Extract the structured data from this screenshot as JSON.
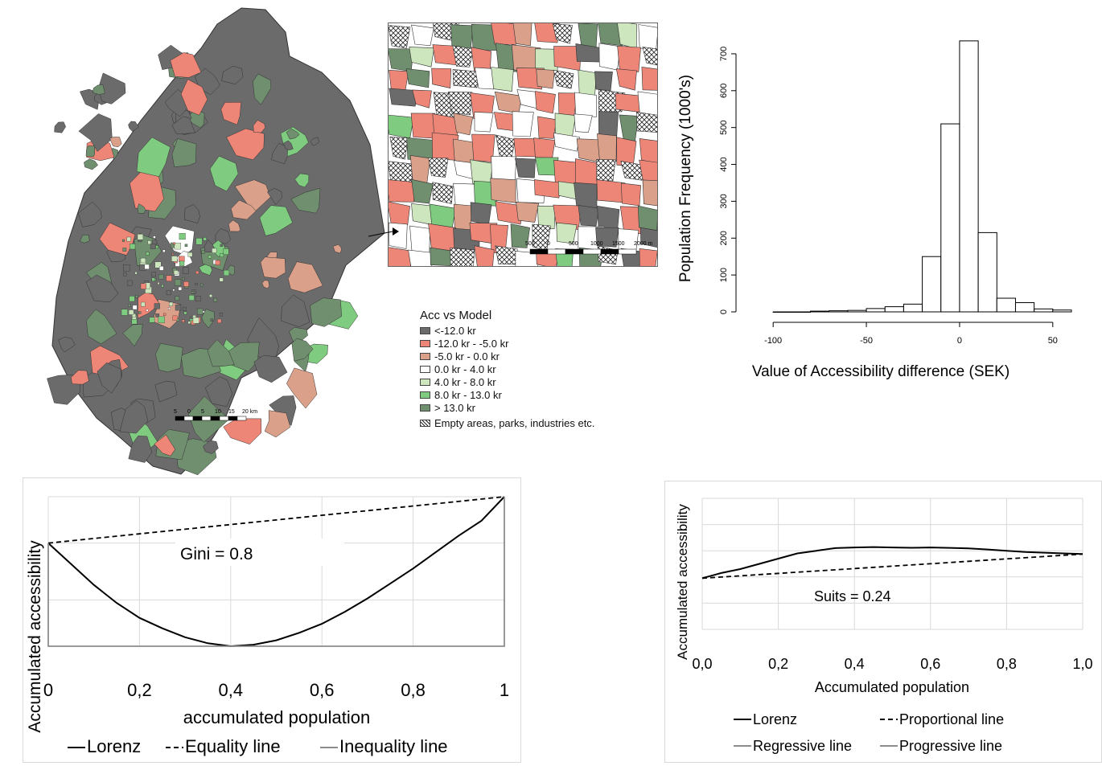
{
  "map": {
    "legend_title": "Acc vs Model",
    "legend": [
      {
        "label": "<-12.0 kr",
        "color": "#6b6b6b"
      },
      {
        "label": "-12.0 kr - -5.0 kr",
        "color": "#ee8677"
      },
      {
        "label": "-5.0 kr - 0.0 kr",
        "color": "#dba08a"
      },
      {
        "label": "0.0 kr - 4.0 kr",
        "color": "#ffffff"
      },
      {
        "label": "4.0 kr - 8.0 kr",
        "color": "#cde6bd"
      },
      {
        "label": "8.0 kr - 13.0 kr",
        "color": "#7fcc80"
      },
      {
        "label": "> 13.0 kr",
        "color": "#6f8f6e"
      }
    ],
    "empty_label": "Empty areas, parks, industries etc.",
    "scale_main": [
      "5",
      "0",
      "5",
      "10",
      "15",
      "20 km"
    ],
    "scale_inset": [
      "500",
      "0",
      "500",
      "1000",
      "1500",
      "2000 m"
    ]
  },
  "chart_data": [
    {
      "type": "bar",
      "title": "",
      "xlabel": "Value of Accessibility difference (SEK)",
      "ylabel": "Population Frequency (1000's)",
      "bin_width": 10,
      "bin_starts": [
        -100,
        -90,
        -80,
        -70,
        -60,
        -50,
        -40,
        -30,
        -20,
        -10,
        0,
        10,
        20,
        30,
        40,
        50
      ],
      "values": [
        0,
        0,
        2,
        3,
        4,
        9,
        14,
        21,
        150,
        510,
        735,
        215,
        37,
        25,
        8,
        5
      ],
      "xticks": [
        "-100",
        "-50",
        "0",
        "50"
      ],
      "yticks": [
        "0",
        "100",
        "200",
        "300",
        "400",
        "500",
        "600",
        "700"
      ],
      "xlim": [
        -110,
        60
      ],
      "ylim": [
        0,
        750
      ]
    },
    {
      "type": "line",
      "title": "",
      "xlabel": "accumulated population",
      "ylabel": "Accumulated accessibility",
      "annotation": "Gini = 0.8",
      "xticks": [
        "0",
        "0,2",
        "0,4",
        "0,6",
        "0,8",
        "1"
      ],
      "series": [
        {
          "name": "Lorenz",
          "style": "solid",
          "x": [
            0,
            0.05,
            0.1,
            0.15,
            0.2,
            0.25,
            0.3,
            0.35,
            0.4,
            0.45,
            0.5,
            0.55,
            0.6,
            0.65,
            0.7,
            0.75,
            0.8,
            0.85,
            0.9,
            0.95,
            1.0
          ],
          "y": [
            0.69,
            0.55,
            0.41,
            0.29,
            0.19,
            0.12,
            0.06,
            0.02,
            0.0,
            0.01,
            0.04,
            0.09,
            0.15,
            0.23,
            0.32,
            0.42,
            0.52,
            0.63,
            0.74,
            0.84,
            1.0
          ]
        },
        {
          "name": "Equality line",
          "style": "dashed",
          "x": [
            0,
            1
          ],
          "y": [
            0.69,
            1.0
          ]
        },
        {
          "name": "Inequality line",
          "style": "gray",
          "x": [
            0,
            0,
            1,
            1
          ],
          "y": [
            0.69,
            0,
            0,
            1.0
          ]
        }
      ],
      "xlim": [
        0,
        1
      ],
      "ylim": [
        0,
        1
      ]
    },
    {
      "type": "line",
      "title": "",
      "xlabel": "Accumulated population",
      "ylabel": "Accumulated accessibility",
      "annotation": "Suits = 0.24",
      "xticks": [
        "0,0",
        "0,2",
        "0,4",
        "0,6",
        "0,8",
        "1,0"
      ],
      "series": [
        {
          "name": "Lorenz",
          "style": "solid",
          "x": [
            0,
            0.05,
            0.1,
            0.15,
            0.2,
            0.25,
            0.3,
            0.35,
            0.4,
            0.45,
            0.5,
            0.55,
            0.6,
            0.65,
            0.7,
            0.75,
            0.8,
            0.85,
            0.9,
            0.95,
            1.0
          ],
          "y": [
            0.39,
            0.43,
            0.46,
            0.5,
            0.54,
            0.58,
            0.6,
            0.62,
            0.625,
            0.628,
            0.625,
            0.623,
            0.625,
            0.622,
            0.618,
            0.61,
            0.6,
            0.59,
            0.585,
            0.58,
            0.575
          ]
        },
        {
          "name": "Proportional line",
          "style": "dashed",
          "x": [
            0,
            1
          ],
          "y": [
            0.39,
            0.575
          ]
        },
        {
          "name": "Regressive line",
          "style": "gray",
          "x": [],
          "y": []
        },
        {
          "name": "Progressive line",
          "style": "gray",
          "x": [],
          "y": []
        }
      ],
      "xlim": [
        0,
        1
      ],
      "ylim": [
        0,
        1
      ]
    }
  ]
}
